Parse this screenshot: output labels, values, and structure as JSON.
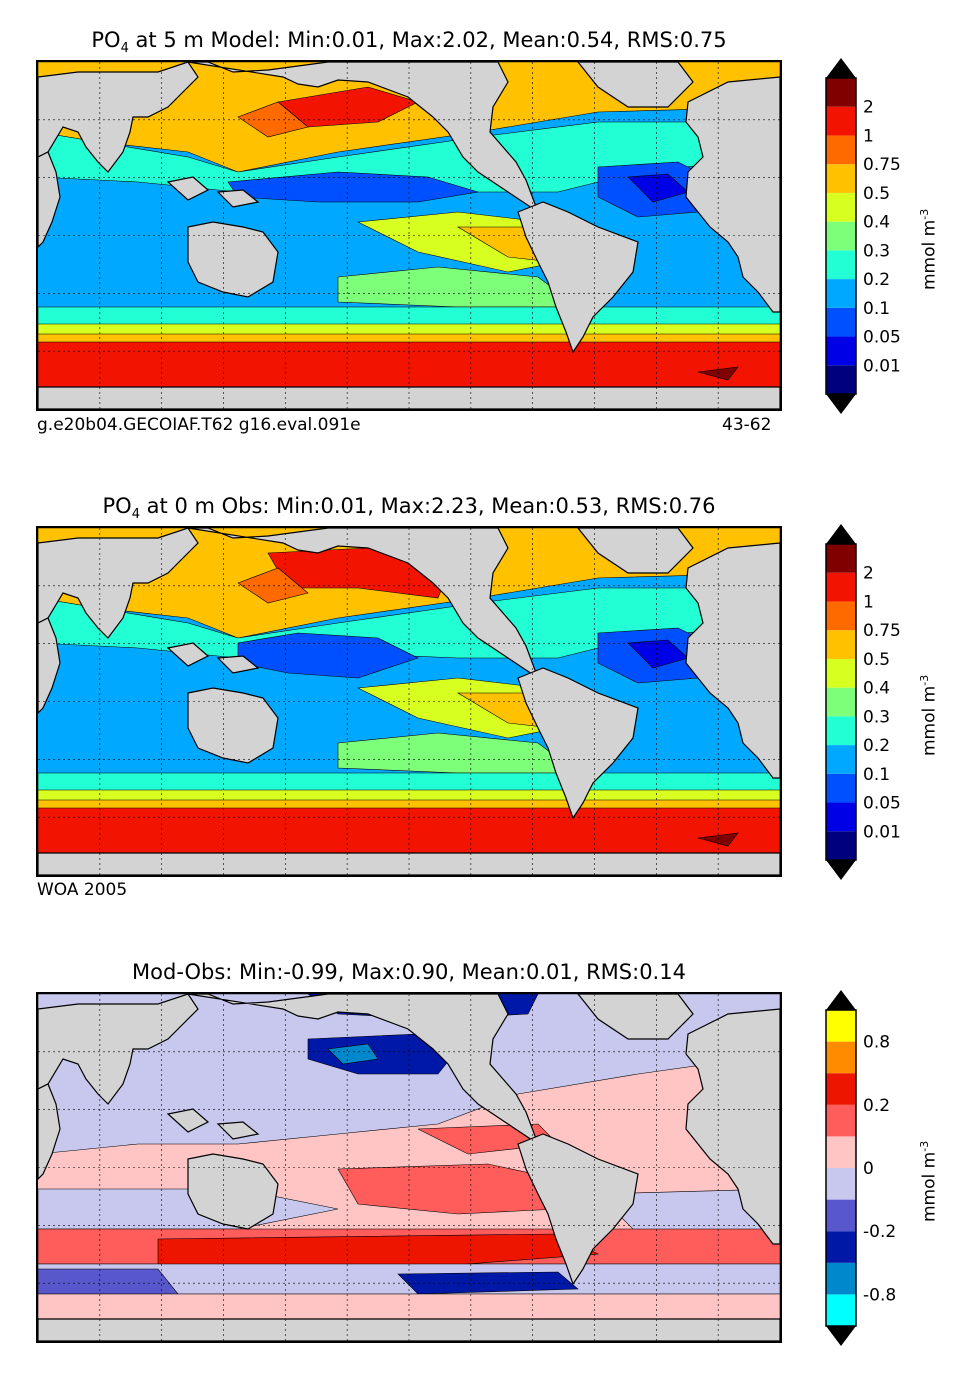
{
  "panels": [
    {
      "id": "model",
      "title_prefix": "PO",
      "title_sub": "4",
      "title_rest": " at 5 m Model: Min:0.01, Max:2.02, Mean:0.54, RMS:0.75",
      "footer_left": "g.e20b04.GECOIAF.T62 g16.eval.091e",
      "footer_right": "43-62",
      "colorbar": {
        "ticks": [
          "0.01",
          "0.05",
          "0.1",
          "0.2",
          "0.3",
          "0.4",
          "0.5",
          "0.75",
          "1",
          "2"
        ],
        "colors": [
          "#00007f",
          "#0000e6",
          "#0050ff",
          "#00a8ff",
          "#23ffd4",
          "#7dff7a",
          "#d7ff1f",
          "#ffc100",
          "#ff6a00",
          "#f21400",
          "#800000"
        ],
        "unit": "mmol m",
        "unit_sup": "-3"
      }
    },
    {
      "id": "obs",
      "title_prefix": "PO",
      "title_sub": "4",
      "title_rest": " at 0 m Obs: Min:0.01, Max:2.23, Mean:0.53, RMS:0.76",
      "footer_left": "WOA 2005",
      "footer_right": "",
      "colorbar": {
        "ticks": [
          "0.01",
          "0.05",
          "0.1",
          "0.2",
          "0.3",
          "0.4",
          "0.5",
          "0.75",
          "1",
          "2"
        ],
        "colors": [
          "#00007f",
          "#0000e6",
          "#0050ff",
          "#00a8ff",
          "#23ffd4",
          "#7dff7a",
          "#d7ff1f",
          "#ffc100",
          "#ff6a00",
          "#f21400",
          "#800000"
        ],
        "unit": "mmol m",
        "unit_sup": "-3"
      }
    },
    {
      "id": "diff",
      "title_prefix": "",
      "title_sub": "",
      "title_rest": "Mod-Obs: Min:-0.99, Max:0.90, Mean:0.01, RMS:0.14",
      "footer_left": "",
      "footer_right": "",
      "colorbar": {
        "ticks": [
          "-0.8",
          "",
          "-0.2",
          "",
          "0",
          "",
          "0.2",
          "",
          "0.8"
        ],
        "colors": [
          "#00ffff",
          "#0088cc",
          "#0018a8",
          "#5858cc",
          "#c8c8ee",
          "#ffc4c4",
          "#ff5c5c",
          "#ee1500",
          "#ff8c00",
          "#ffff00"
        ],
        "unit": "mmol m",
        "unit_sup": "-3"
      }
    }
  ],
  "chart_data": [
    {
      "type": "heatmap",
      "title": "PO4 at 5 m Model: Min:0.01, Max:2.02, Mean:0.54, RMS:0.75",
      "variable": "PO4",
      "depth": "5 m",
      "source": "Model",
      "stats": {
        "min": 0.01,
        "max": 2.02,
        "mean": 0.54,
        "rms": 0.75
      },
      "levels": [
        0.01,
        0.05,
        0.1,
        0.2,
        0.3,
        0.4,
        0.5,
        0.75,
        1,
        2
      ],
      "unit": "mmol m-3",
      "grid": true,
      "colorbar_extend": "both"
    },
    {
      "type": "heatmap",
      "title": "PO4 at 0 m Obs: Min:0.01, Max:2.23, Mean:0.53, RMS:0.76",
      "variable": "PO4",
      "depth": "0 m",
      "source": "Obs",
      "stats": {
        "min": 0.01,
        "max": 2.23,
        "mean": 0.53,
        "rms": 0.76
      },
      "levels": [
        0.01,
        0.05,
        0.1,
        0.2,
        0.3,
        0.4,
        0.5,
        0.75,
        1,
        2
      ],
      "unit": "mmol m-3",
      "grid": true,
      "colorbar_extend": "both"
    },
    {
      "type": "heatmap",
      "title": "Mod-Obs: Min:-0.99, Max:0.90, Mean:0.01, RMS:0.14",
      "stats": {
        "min": -0.99,
        "max": 0.9,
        "mean": 0.01,
        "rms": 0.14
      },
      "levels": [
        -0.8,
        -0.2,
        0,
        0.2,
        0.8
      ],
      "unit": "mmol m-3",
      "grid": true,
      "colorbar_extend": "both"
    }
  ]
}
